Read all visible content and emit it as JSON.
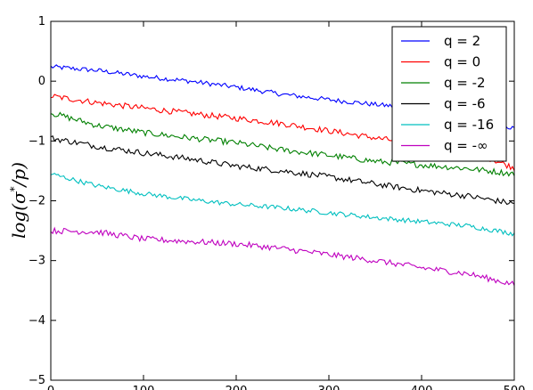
{
  "chart_data": {
    "type": "line",
    "title": "",
    "xlabel": "",
    "ylabel": "log(σ*/p)",
    "xlim": [
      0,
      500
    ],
    "ylim": [
      -5,
      1
    ],
    "x_ticks": [
      0,
      100,
      200,
      300,
      400,
      500
    ],
    "y_ticks": [
      1,
      0,
      -1,
      -2,
      -3,
      -4,
      -5
    ],
    "x_tick_labels": [
      "0",
      "100",
      "200",
      "300",
      "400",
      "500"
    ],
    "y_tick_labels": [
      "1",
      "0",
      "−1",
      "−2",
      "−3",
      "−4",
      "−5"
    ],
    "grid": false,
    "legend_position": "top-right",
    "x": [
      0,
      50,
      100,
      150,
      200,
      250,
      300,
      350,
      400,
      450,
      500
    ],
    "series": [
      {
        "name": "q = 2",
        "color": "#0000ff",
        "values": [
          0.24,
          0.18,
          0.08,
          0.0,
          -0.1,
          -0.22,
          -0.31,
          -0.39,
          -0.46,
          -0.52,
          -0.8
        ],
        "noise": 0.04
      },
      {
        "name": "q = 0",
        "color": "#ff0000",
        "values": [
          -0.25,
          -0.36,
          -0.45,
          -0.54,
          -0.62,
          -0.71,
          -0.83,
          -0.95,
          -1.05,
          -1.15,
          -1.45
        ],
        "noise": 0.05
      },
      {
        "name": "q = -2",
        "color": "#008000",
        "values": [
          -0.53,
          -0.74,
          -0.86,
          -0.95,
          -1.03,
          -1.15,
          -1.24,
          -1.34,
          -1.4,
          -1.46,
          -1.55
        ],
        "noise": 0.05
      },
      {
        "name": "q = -6",
        "color": "#000000",
        "values": [
          -0.95,
          -1.09,
          -1.2,
          -1.3,
          -1.42,
          -1.5,
          -1.6,
          -1.72,
          -1.83,
          -1.92,
          -2.05
        ],
        "noise": 0.05
      },
      {
        "name": "q = -16",
        "color": "#00bfbf",
        "values": [
          -1.55,
          -1.75,
          -1.88,
          -1.98,
          -2.06,
          -2.12,
          -2.2,
          -2.28,
          -2.35,
          -2.42,
          -2.55
        ],
        "noise": 0.04
      },
      {
        "name": "q = -∞",
        "color": "#bf00bf",
        "values": [
          -2.5,
          -2.52,
          -2.64,
          -2.68,
          -2.72,
          -2.8,
          -2.9,
          -3.0,
          -3.12,
          -3.22,
          -3.4
        ],
        "noise": 0.05
      }
    ]
  }
}
